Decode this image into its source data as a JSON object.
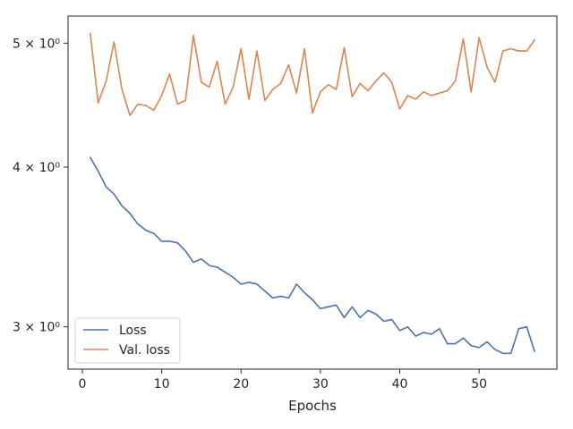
{
  "chart_data": {
    "type": "line",
    "title": "",
    "xlabel": "Epochs",
    "ylabel": "",
    "yscale": "log",
    "xlim": [
      -1.8,
      59.8
    ],
    "ylim": [
      2.78,
      5.25
    ],
    "grid": false,
    "legend_position": "lower-left",
    "x_ticks": [
      0,
      10,
      20,
      30,
      40,
      50
    ],
    "x_tick_labels": [
      "0",
      "10",
      "20",
      "30",
      "40",
      "50"
    ],
    "y_ticks": [
      3,
      4,
      5
    ],
    "y_tick_labels": [
      "3 × 10⁰",
      "4 × 10⁰",
      "5 × 10⁰"
    ],
    "x": [
      1,
      2,
      3,
      4,
      5,
      6,
      7,
      8,
      9,
      10,
      11,
      12,
      13,
      14,
      15,
      16,
      17,
      18,
      19,
      20,
      21,
      22,
      23,
      24,
      25,
      26,
      27,
      28,
      29,
      30,
      31,
      32,
      33,
      34,
      35,
      36,
      37,
      38,
      39,
      40,
      41,
      42,
      43,
      44,
      45,
      46,
      47,
      48,
      49,
      50,
      51,
      52,
      53,
      54,
      55,
      56,
      57
    ],
    "series": [
      {
        "name": "Loss",
        "color": "#4c72b0",
        "values": [
          4.07,
          3.97,
          3.86,
          3.81,
          3.73,
          3.68,
          3.61,
          3.57,
          3.55,
          3.5,
          3.5,
          3.49,
          3.44,
          3.37,
          3.39,
          3.35,
          3.34,
          3.31,
          3.28,
          3.24,
          3.25,
          3.24,
          3.2,
          3.16,
          3.17,
          3.16,
          3.24,
          3.19,
          3.15,
          3.1,
          3.11,
          3.12,
          3.05,
          3.11,
          3.05,
          3.09,
          3.07,
          3.03,
          3.04,
          2.98,
          3.0,
          2.95,
          2.97,
          2.96,
          2.99,
          2.91,
          2.91,
          2.94,
          2.9,
          2.89,
          2.92,
          2.88,
          2.86,
          2.86,
          2.99,
          3.0,
          2.87
        ]
      },
      {
        "name": "Val. loss",
        "color": "#dd8452",
        "values": [
          5.09,
          4.49,
          4.67,
          5.01,
          4.6,
          4.39,
          4.48,
          4.47,
          4.43,
          4.55,
          4.73,
          4.48,
          4.51,
          5.07,
          4.66,
          4.62,
          4.84,
          4.48,
          4.62,
          4.95,
          4.52,
          4.93,
          4.51,
          4.6,
          4.65,
          4.81,
          4.57,
          4.95,
          4.41,
          4.58,
          4.64,
          4.6,
          4.96,
          4.54,
          4.65,
          4.59,
          4.67,
          4.74,
          4.66,
          4.44,
          4.55,
          4.52,
          4.58,
          4.55,
          4.57,
          4.59,
          4.67,
          5.04,
          4.58,
          5.05,
          4.79,
          4.66,
          4.93,
          4.95,
          4.93,
          4.93,
          5.03
        ]
      }
    ]
  }
}
